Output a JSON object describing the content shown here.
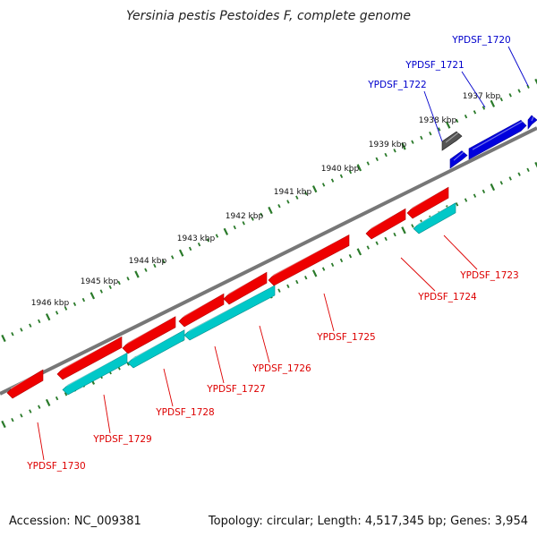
{
  "title": "Yersinia pestis Pestoides F, complete genome",
  "footer": {
    "accession": "Accession: NC_009381",
    "summary": "Topology: circular; Length: 4,517,345 bp; Genes: 3,954"
  },
  "scale": {
    "unit": "kbp",
    "ticks": [
      "1937 kbp",
      "1938 kbp",
      "1939 kbp",
      "1940 kbp",
      "1941 kbp",
      "1942 kbp",
      "1943 kbp",
      "1944 kbp",
      "1945 kbp",
      "1946 kbp"
    ]
  },
  "colors": {
    "forward_gene": "#0000dd",
    "reverse_gene": "#ee0000",
    "rna_gene": "#555555",
    "cds_feature": "#00c8c8",
    "backbone": "#777777",
    "tick": "#2a7a2a",
    "forward_label": "#0000cc",
    "reverse_label": "#dd0000"
  },
  "genes": [
    {
      "id": "YPDSF_1720",
      "strand": "forward"
    },
    {
      "id": "YPDSF_1721",
      "strand": "forward"
    },
    {
      "id": "YPDSF_1722",
      "strand": "forward"
    },
    {
      "id": "YPDSF_1723",
      "strand": "reverse"
    },
    {
      "id": "YPDSF_1724",
      "strand": "reverse"
    },
    {
      "id": "YPDSF_1725",
      "strand": "reverse"
    },
    {
      "id": "YPDSF_1726",
      "strand": "reverse"
    },
    {
      "id": "YPDSF_1727",
      "strand": "reverse"
    },
    {
      "id": "YPDSF_1728",
      "strand": "reverse"
    },
    {
      "id": "YPDSF_1729",
      "strand": "reverse"
    },
    {
      "id": "YPDSF_1730",
      "strand": "reverse"
    }
  ]
}
